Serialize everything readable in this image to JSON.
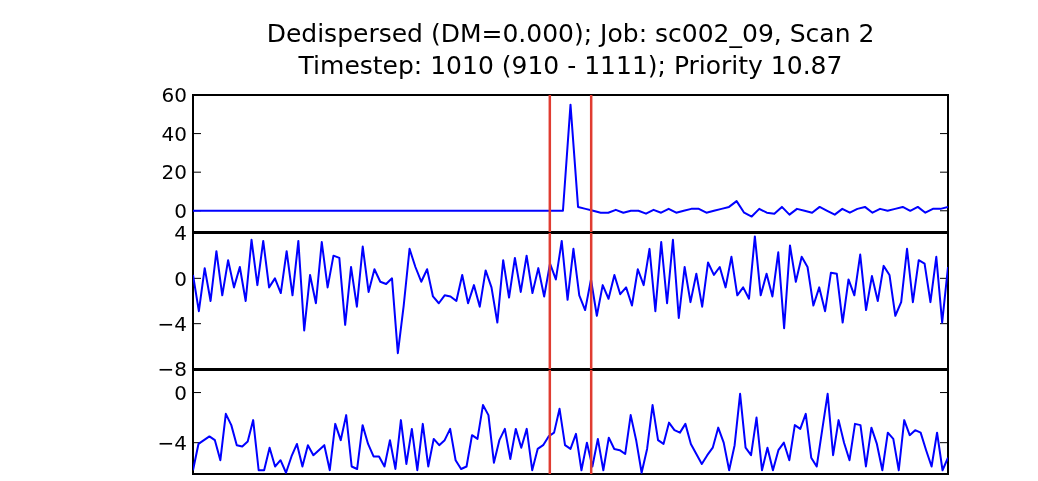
{
  "chart_data": [
    {
      "type": "line",
      "title": "Dedispersed (DM=0.000); Job: sc002_09, Scan 2",
      "subtitle": "Timestep: 1010 (910 - 1111); Priority 10.87",
      "tick_labels": "y",
      "categories": [
        null,
        null,
        null,
        null,
        null,
        null,
        null,
        null,
        null,
        null,
        null,
        null,
        null,
        null,
        null,
        null,
        null,
        null,
        null,
        null,
        null,
        null,
        null,
        null,
        null,
        null,
        null,
        null,
        null,
        null,
        null,
        null,
        null,
        null,
        null,
        null,
        null,
        null,
        null,
        null,
        null,
        null,
        null,
        null,
        null,
        null,
        null,
        null,
        null,
        null,
        null,
        null,
        null,
        null,
        null,
        null,
        null,
        null,
        null,
        null,
        null,
        null,
        null,
        null,
        null,
        null,
        null,
        null,
        null,
        null,
        null,
        null,
        null,
        null,
        null,
        null,
        null,
        null,
        null,
        null,
        null,
        null,
        null,
        null,
        null,
        null,
        null,
        null,
        null,
        null,
        null,
        null,
        null,
        null,
        null,
        null,
        null,
        null,
        null,
        null,
        null
      ],
      "series": [
        {
          "color": "#0000ff",
          "values": [
            0,
            0,
            0,
            0,
            0,
            0,
            0,
            0,
            0,
            0,
            0,
            0,
            0,
            0,
            0,
            0,
            0,
            0,
            0,
            0,
            0,
            0,
            0,
            0,
            0,
            0,
            0,
            0,
            0,
            0,
            0,
            0,
            0,
            0,
            0,
            0,
            0,
            0,
            0,
            0,
            0,
            0,
            0,
            0,
            0,
            0,
            0,
            0,
            0,
            0,
            55,
            2,
            1,
            0,
            -1,
            -1,
            0.5,
            -1,
            0,
            0,
            -1.5,
            0.5,
            -1,
            1,
            -1,
            0,
            1,
            1,
            -1,
            0,
            1,
            2,
            5,
            -1,
            -3,
            1,
            -1,
            -1.5,
            2,
            -2,
            1,
            0,
            -1,
            2,
            0,
            -2,
            1,
            -1,
            1,
            2,
            -1,
            1,
            0,
            1,
            2,
            0,
            2,
            -1,
            1,
            1,
            2
          ]
        }
      ],
      "ylim": [
        -11,
        60
      ],
      "yticks": [
        0,
        20,
        40,
        60
      ]
    },
    {
      "type": "line",
      "tick_labels": "y",
      "categories": [
        null,
        null,
        null,
        null,
        null,
        null,
        null,
        null,
        null,
        null,
        null,
        null,
        null,
        null,
        null,
        null,
        null,
        null,
        null,
        null,
        null,
        null,
        null,
        null,
        null,
        null,
        null,
        null,
        null,
        null,
        null,
        null,
        null,
        null,
        null,
        null,
        null,
        null,
        null,
        null,
        null,
        null,
        null,
        null,
        null,
        null,
        null,
        null,
        null,
        null,
        null,
        null,
        null,
        null,
        null,
        null,
        null,
        null,
        null,
        null,
        null,
        null,
        null,
        null,
        null,
        null,
        null,
        null,
        null,
        null,
        null,
        null,
        null,
        null,
        null,
        null,
        null,
        null,
        null,
        null,
        null,
        null,
        null,
        null,
        null,
        null,
        null,
        null,
        null,
        null,
        null,
        null,
        null,
        null,
        null,
        null,
        null,
        null,
        null,
        null,
        null,
        null,
        null,
        null,
        null,
        null,
        null,
        null,
        null,
        null,
        null,
        null,
        null,
        null,
        null,
        null,
        null,
        null,
        null,
        null,
        null,
        null,
        null,
        null,
        null,
        null,
        null,
        null,
        null,
        null
      ],
      "series": [
        {
          "color": "#0000ff",
          "values": [
            0.3,
            -2.9,
            0.9,
            -2,
            2.4,
            -1.5,
            1.6,
            -0.8,
            1,
            -2,
            3.4,
            -0.6,
            3.3,
            -0.8,
            0,
            -1.3,
            2.4,
            -1.5,
            3.3,
            -4.6,
            0.3,
            -2.2,
            3.2,
            -0.8,
            2,
            1.8,
            -4.1,
            1,
            -2.5,
            2.8,
            -1.2,
            0.8,
            -0.3,
            -0.5,
            0,
            -6.6,
            -2.4,
            2.6,
            1,
            -0.3,
            0.8,
            -1.6,
            -2.2,
            -1.5,
            -1.6,
            -2,
            0.3,
            -2.2,
            -0.6,
            -2.5,
            0.7,
            -0.8,
            -3.9,
            1.6,
            -1.7,
            1.8,
            -1.2,
            2,
            -1.3,
            0.9,
            -1.6,
            1.3,
            -0.1,
            3.3,
            -1.9,
            2.6,
            -1.5,
            -2.8,
            -0.1,
            -3.3,
            -0.6,
            -1.8,
            0.3,
            -1.4,
            -0.8,
            -2.4,
            0.8,
            -0.6,
            2.6,
            -2.9,
            3.2,
            -2.2,
            3.4,
            -3.5,
            1,
            -2.1,
            0.4,
            -2.5,
            1.4,
            0.3,
            1,
            -0.8,
            1.9,
            -1.5,
            -0.8,
            -1.8,
            3.7,
            -1.5,
            0.4,
            -1.6,
            2.3,
            -4.4,
            2.9,
            -0.3,
            1.9,
            1,
            -2.4,
            -0.8,
            -2.9,
            0.5,
            0.4,
            -3.9,
            -0.1,
            -1.5,
            2.1,
            -2.8,
            0.2,
            -2,
            1.1,
            0.3,
            -3.3,
            -2.1,
            2.6,
            -2.1,
            1.6,
            1.3,
            -2.1,
            1.9,
            -3.9,
            1
          ]
        }
      ],
      "ylim": [
        -8,
        4
      ],
      "yticks": [
        {
          "value": 4,
          "label": "4"
        },
        {
          "value": 0,
          "label": "0"
        },
        {
          "value": -4,
          "label": "−4"
        },
        {
          "value": -8,
          "label": "−8"
        }
      ]
    },
    {
      "type": "line",
      "tick_labels": "y",
      "categories": [
        null,
        null,
        null,
        null,
        null,
        null,
        null,
        null,
        null,
        null,
        null,
        null,
        null,
        null,
        null,
        null,
        null,
        null,
        null,
        null,
        null,
        null,
        null,
        null,
        null,
        null,
        null,
        null,
        null,
        null,
        null,
        null,
        null,
        null,
        null,
        null,
        null,
        null,
        null,
        null,
        null,
        null,
        null,
        null,
        null,
        null,
        null,
        null,
        null,
        null,
        null,
        null,
        null,
        null,
        null,
        null,
        null,
        null,
        null,
        null,
        null,
        null,
        null,
        null,
        null,
        null,
        null,
        null,
        null,
        null,
        null,
        null,
        null,
        null,
        null,
        null,
        null,
        null,
        null,
        null,
        null,
        null,
        null,
        null,
        null,
        null,
        null,
        null,
        null,
        null,
        null,
        null,
        null,
        null,
        null,
        null,
        null,
        null,
        null,
        null,
        null,
        null,
        null,
        null,
        null,
        null,
        null,
        null,
        null,
        null,
        null,
        null,
        null,
        null,
        null,
        null,
        null,
        null,
        null,
        null,
        null,
        null,
        null,
        null,
        null,
        null,
        null,
        null,
        null,
        null,
        null,
        null,
        null,
        null,
        null,
        null,
        null,
        null,
        null
      ],
      "series": [
        {
          "color": "#0000ff",
          "values": [
            -6.2,
            -4.1,
            -3.8,
            -3.5,
            -3.8,
            -5.4,
            -1.7,
            -2.6,
            -4.2,
            -4.3,
            -3.9,
            -2.2,
            -6.2,
            -6.2,
            -4.4,
            -5.9,
            -5.4,
            -6.4,
            -5.1,
            -4.1,
            -5.9,
            -4.2,
            -5,
            -4.6,
            -4.2,
            -6.2,
            -2.5,
            -3.8,
            -1.8,
            -5.9,
            -6.1,
            -2.6,
            -4.1,
            -5.1,
            -5.1,
            -5.9,
            -3.8,
            -6.1,
            -2.2,
            -5.7,
            -2.9,
            -6.2,
            -2.5,
            -5.9,
            -3.7,
            -4.2,
            -3.8,
            -2.9,
            -5.4,
            -6.1,
            -5.9,
            -3.4,
            -3.7,
            -1,
            -1.8,
            -5.6,
            -3.8,
            -2.9,
            -5.3,
            -2.9,
            -4.4,
            -2.9,
            -6.2,
            -4.5,
            -4.2,
            -3.5,
            -3.2,
            -1.3,
            -4.2,
            -4.5,
            -3.3,
            -6.2,
            -4,
            -5.9,
            -3.7,
            -6.2,
            -3.6,
            -4.5,
            -4.6,
            -4.9,
            -1.8,
            -3.8,
            -6.4,
            -4.5,
            -1,
            -3.8,
            -4.1,
            -2.4,
            -3,
            -3.2,
            -2.5,
            -4.1,
            -4.9,
            -5.7,
            -5,
            -4.4,
            -2.8,
            -4,
            -6.2,
            -4.2,
            -0.1,
            -4.4,
            -5,
            -2,
            -6.2,
            -4.4,
            -6.2,
            -4.6,
            -4,
            -5.4,
            -2.6,
            -2.9,
            -1.7,
            -5.2,
            -5.9,
            -3,
            -0.1,
            -5,
            -2.2,
            -4,
            -5.4,
            -2.5,
            -2.6,
            -5.9,
            -2.8,
            -4.1,
            -6.2,
            -3.2,
            -3.7,
            -6.2,
            -2.2,
            -3.4,
            -3,
            -3.2,
            -4.6,
            -5.9,
            -3.2,
            -6.2,
            -5.2
          ]
        }
      ],
      "ylim": [
        -6.5,
        1.8
      ],
      "yticks": [
        {
          "value": 0,
          "label": "0"
        },
        {
          "value": -4,
          "label": "−4"
        }
      ]
    }
  ]
}
